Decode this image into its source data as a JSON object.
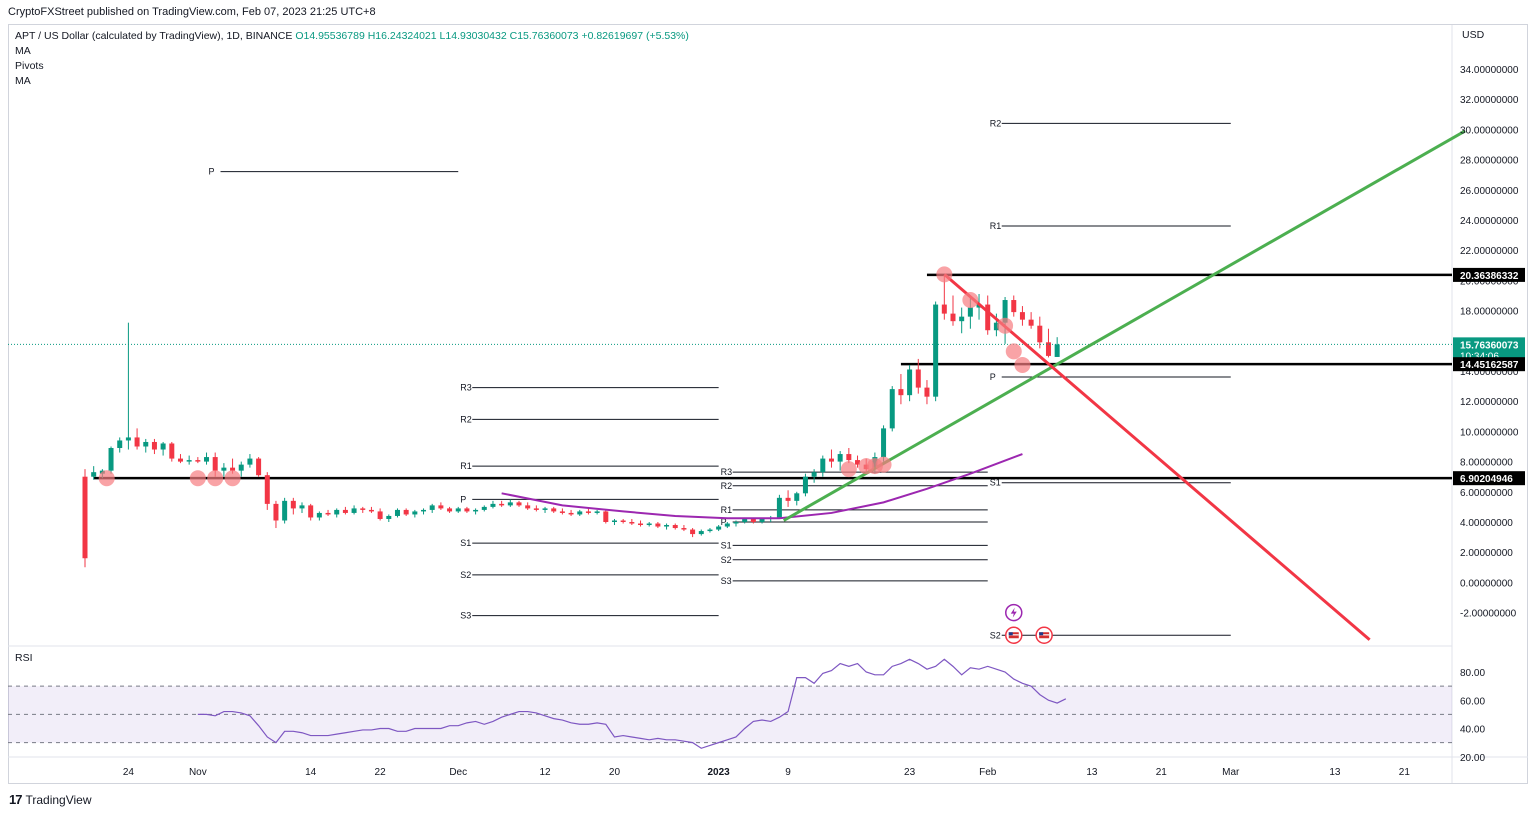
{
  "header": {
    "published": "CryptoFXStreet published on TradingView.com, Feb 07, 2023 21:25 UTC+8"
  },
  "legend": {
    "symbol": "APT / US Dollar (calculated by TradingView), 1D, BINANCE",
    "open": "O14.95536789",
    "high": "H16.24324021",
    "low": "L14.93030432",
    "close": "C15.76360073",
    "change": "+0.82619697 (+5.53%)",
    "indicators": [
      "MA",
      "Pivots",
      "MA"
    ]
  },
  "currency": "USD",
  "rsi_label": "RSI",
  "footer": {
    "logo": "17",
    "brand": "TradingView"
  },
  "colors": {
    "up": "#089981",
    "down": "#f23645",
    "green_trend": "#4caf50",
    "red_trend": "#f23645",
    "ma": "#9c27b0",
    "rsi": "#7e57c2",
    "marker": "#f77c80",
    "pivot": "#131722"
  },
  "chart_data": {
    "type": "candlestick",
    "y_axis": {
      "ylim": [
        -3.5,
        35.5
      ],
      "ticks": [
        "34.00000000",
        "32.00000000",
        "30.00000000",
        "28.00000000",
        "26.00000000",
        "24.00000000",
        "22.00000000",
        "20.00000000",
        "18.00000000",
        "16.00000000",
        "14.00000000",
        "12.00000000",
        "10.00000000",
        "8.00000000",
        "6.00000000",
        "4.00000000",
        "2.00000000",
        "0.00000000",
        "-2.00000000"
      ]
    },
    "price_badges": [
      {
        "value": 20.36386332,
        "label": "20.36386332"
      },
      {
        "value": 15.76360073,
        "label": "15.76360073",
        "sub": "10:34:06",
        "current": true
      },
      {
        "value": 14.45162587,
        "label": "14.45162587"
      },
      {
        "value": 6.90204946,
        "label": "6.90204946"
      }
    ],
    "x_axis": {
      "ticks": [
        {
          "label": "24",
          "day": 5
        },
        {
          "label": "Nov",
          "day": 13
        },
        {
          "label": "14",
          "day": 26
        },
        {
          "label": "22",
          "day": 34
        },
        {
          "label": "Dec",
          "day": 43
        },
        {
          "label": "12",
          "day": 53
        },
        {
          "label": "20",
          "day": 61
        },
        {
          "label": "2023",
          "day": 73,
          "bold": true
        },
        {
          "label": "9",
          "day": 81
        },
        {
          "label": "23",
          "day": 95
        },
        {
          "label": "Feb",
          "day": 104
        },
        {
          "label": "13",
          "day": 116
        },
        {
          "label": "21",
          "day": 124
        },
        {
          "label": "Mar",
          "day": 132
        },
        {
          "label": "13",
          "day": 144
        },
        {
          "label": "21",
          "day": 152
        }
      ]
    },
    "candles": [
      [
        7.0,
        7.5,
        1.0,
        1.6
      ],
      [
        7.0,
        7.7,
        6.8,
        7.3
      ],
      [
        7.2,
        7.5,
        6.9,
        7.4
      ],
      [
        7.4,
        9.0,
        7.2,
        8.9
      ],
      [
        8.9,
        9.6,
        8.6,
        9.4
      ],
      [
        9.4,
        17.2,
        8.8,
        9.6
      ],
      [
        9.6,
        10.2,
        8.8,
        9.0
      ],
      [
        9.0,
        9.5,
        8.6,
        9.3
      ],
      [
        9.3,
        9.5,
        8.5,
        8.8
      ],
      [
        8.8,
        9.3,
        8.4,
        9.2
      ],
      [
        9.2,
        9.3,
        8.0,
        8.2
      ],
      [
        8.2,
        8.5,
        7.9,
        8.0
      ],
      [
        8.0,
        8.4,
        7.8,
        8.1
      ],
      [
        8.1,
        8.3,
        7.9,
        8.0
      ],
      [
        8.0,
        8.6,
        7.8,
        8.3
      ],
      [
        8.3,
        8.6,
        7.0,
        7.4
      ],
      [
        7.4,
        7.9,
        7.0,
        7.6
      ],
      [
        7.6,
        8.2,
        7.2,
        7.4
      ],
      [
        7.4,
        8.0,
        7.0,
        7.8
      ],
      [
        7.8,
        8.5,
        7.6,
        8.2
      ],
      [
        8.2,
        8.3,
        7.0,
        7.1
      ],
      [
        7.1,
        7.3,
        4.8,
        5.2
      ],
      [
        5.2,
        5.4,
        3.6,
        4.1
      ],
      [
        4.1,
        5.6,
        3.9,
        5.4
      ],
      [
        5.4,
        5.6,
        4.5,
        4.9
      ],
      [
        4.9,
        5.3,
        4.6,
        5.1
      ],
      [
        5.1,
        5.2,
        4.1,
        4.3
      ],
      [
        4.3,
        4.7,
        4.1,
        4.6
      ],
      [
        4.6,
        4.8,
        4.4,
        4.5
      ],
      [
        4.5,
        4.9,
        4.3,
        4.8
      ],
      [
        4.8,
        5.0,
        4.5,
        4.6
      ],
      [
        4.6,
        5.1,
        4.5,
        4.9
      ],
      [
        4.9,
        5.0,
        4.6,
        4.8
      ],
      [
        4.8,
        5.0,
        4.6,
        4.7
      ],
      [
        4.7,
        4.9,
        4.1,
        4.2
      ],
      [
        4.2,
        4.5,
        4.0,
        4.4
      ],
      [
        4.4,
        4.9,
        4.3,
        4.8
      ],
      [
        4.8,
        4.9,
        4.4,
        4.5
      ],
      [
        4.5,
        4.8,
        4.3,
        4.7
      ],
      [
        4.7,
        4.9,
        4.5,
        4.8
      ],
      [
        4.8,
        5.2,
        4.6,
        5.1
      ],
      [
        5.1,
        5.3,
        4.8,
        4.9
      ],
      [
        4.9,
        5.0,
        4.6,
        4.7
      ],
      [
        4.7,
        5.0,
        4.6,
        4.9
      ],
      [
        4.9,
        5.0,
        4.6,
        4.7
      ],
      [
        4.7,
        4.9,
        4.5,
        4.8
      ],
      [
        4.8,
        5.1,
        4.7,
        5.0
      ],
      [
        5.0,
        5.4,
        4.9,
        5.2
      ],
      [
        5.2,
        5.4,
        5.0,
        5.1
      ],
      [
        5.1,
        5.5,
        5.0,
        5.3
      ],
      [
        5.3,
        5.4,
        5.0,
        5.1
      ],
      [
        5.1,
        5.3,
        4.8,
        4.9
      ],
      [
        4.9,
        5.1,
        4.7,
        4.8
      ],
      [
        4.8,
        5.0,
        4.6,
        4.9
      ],
      [
        4.9,
        5.0,
        4.6,
        4.7
      ],
      [
        4.7,
        4.9,
        4.5,
        4.6
      ],
      [
        4.6,
        4.8,
        4.4,
        4.5
      ],
      [
        4.5,
        4.8,
        4.4,
        4.7
      ],
      [
        4.7,
        4.9,
        4.5,
        4.6
      ],
      [
        4.6,
        4.8,
        4.5,
        4.7
      ],
      [
        4.7,
        4.8,
        3.9,
        4.0
      ],
      [
        4.0,
        4.2,
        3.8,
        4.1
      ],
      [
        4.1,
        4.2,
        3.9,
        4.0
      ],
      [
        4.0,
        4.2,
        3.8,
        3.9
      ],
      [
        3.9,
        4.1,
        3.7,
        3.8
      ],
      [
        3.8,
        4.0,
        3.7,
        3.9
      ],
      [
        3.9,
        4.0,
        3.6,
        3.7
      ],
      [
        3.7,
        3.9,
        3.5,
        3.8
      ],
      [
        3.8,
        3.9,
        3.5,
        3.6
      ],
      [
        3.6,
        3.8,
        3.4,
        3.5
      ],
      [
        3.5,
        3.6,
        3.0,
        3.2
      ],
      [
        3.2,
        3.5,
        3.1,
        3.4
      ],
      [
        3.4,
        3.6,
        3.3,
        3.5
      ],
      [
        3.5,
        3.8,
        3.4,
        3.7
      ],
      [
        3.7,
        4.0,
        3.6,
        3.9
      ],
      [
        3.9,
        4.1,
        3.7,
        4.0
      ],
      [
        4.0,
        4.3,
        3.9,
        4.2
      ],
      [
        4.2,
        4.3,
        3.9,
        4.0
      ],
      [
        4.0,
        4.3,
        3.9,
        4.2
      ],
      [
        4.2,
        4.4,
        4.0,
        4.3
      ],
      [
        4.3,
        5.8,
        4.2,
        5.6
      ],
      [
        5.6,
        6.1,
        5.0,
        5.4
      ],
      [
        5.4,
        6.0,
        5.1,
        5.9
      ],
      [
        5.9,
        7.2,
        5.7,
        7.0
      ],
      [
        7.0,
        7.5,
        6.6,
        7.3
      ],
      [
        7.3,
        8.4,
        7.0,
        8.2
      ],
      [
        8.2,
        8.8,
        7.6,
        8.0
      ],
      [
        8.0,
        8.7,
        7.4,
        8.5
      ],
      [
        8.5,
        8.9,
        7.9,
        8.1
      ],
      [
        8.1,
        8.4,
        7.6,
        7.8
      ],
      [
        7.8,
        8.2,
        7.3,
        7.5
      ],
      [
        7.5,
        8.6,
        7.2,
        8.3
      ],
      [
        8.3,
        10.4,
        8.0,
        10.2
      ],
      [
        10.2,
        13.0,
        10.0,
        12.8
      ],
      [
        12.8,
        13.8,
        11.8,
        12.4
      ],
      [
        12.4,
        14.4,
        12.0,
        14.1
      ],
      [
        14.1,
        14.8,
        12.5,
        12.9
      ],
      [
        12.9,
        13.4,
        11.8,
        12.3
      ],
      [
        12.3,
        18.6,
        12.0,
        18.4
      ],
      [
        18.4,
        20.3,
        17.4,
        17.8
      ],
      [
        17.8,
        19.0,
        17.0,
        17.3
      ],
      [
        17.3,
        18.2,
        16.5,
        17.6
      ],
      [
        17.6,
        19.0,
        16.8,
        18.2
      ],
      [
        18.2,
        19.1,
        17.4,
        18.4
      ],
      [
        18.4,
        19.0,
        16.4,
        16.7
      ],
      [
        16.7,
        17.8,
        16.3,
        17.2
      ],
      [
        17.2,
        18.9,
        15.8,
        18.7
      ],
      [
        18.7,
        19.0,
        17.6,
        17.9
      ],
      [
        17.9,
        18.3,
        17.0,
        17.4
      ],
      [
        17.4,
        17.9,
        16.8,
        17.0
      ],
      [
        17.0,
        17.6,
        15.5,
        15.9
      ],
      [
        15.9,
        16.8,
        14.9,
        15.0
      ],
      [
        14.93,
        16.24,
        14.93,
        15.76
      ]
    ],
    "series": [
      {
        "name": "MA",
        "type": "line",
        "color": "#9c27b0",
        "points": [
          [
            48,
            5.9
          ],
          [
            55,
            5.1
          ],
          [
            62,
            4.7
          ],
          [
            68,
            4.4
          ],
          [
            74,
            4.25
          ],
          [
            80,
            4.25
          ],
          [
            86,
            4.6
          ],
          [
            92,
            5.3
          ],
          [
            97,
            6.2
          ],
          [
            102,
            7.2
          ],
          [
            108,
            8.5
          ]
        ]
      }
    ],
    "horizontal_levels": [
      {
        "value": 20.36386332,
        "from_day": 97
      },
      {
        "value": 14.45162587,
        "from_day": 94
      },
      {
        "value": 6.90204946,
        "from_day": 1
      }
    ],
    "trendlines": [
      {
        "name": "support",
        "color": "#4caf50",
        "from": [
          80.5,
          4.1
        ],
        "to": [
          159,
          29.9
        ]
      },
      {
        "name": "resistance",
        "color": "#f23645",
        "from": [
          99,
          20.4
        ],
        "to": [
          148,
          -3.8
        ]
      }
    ],
    "touch_markers": [
      [
        2.5,
        6.9
      ],
      [
        13,
        6.9
      ],
      [
        15,
        6.9
      ],
      [
        17,
        6.9
      ],
      [
        92,
        7.8
      ],
      [
        91,
        7.7
      ],
      [
        90,
        7.7
      ],
      [
        88,
        7.5
      ],
      [
        99,
        20.4
      ],
      [
        102,
        18.7
      ],
      [
        106,
        17.0
      ],
      [
        107,
        15.3
      ],
      [
        108,
        14.4
      ]
    ],
    "pivots": [
      {
        "x_from": 14,
        "x_to": 43,
        "levels": [
          {
            "label": "P",
            "value": 27.2
          }
        ]
      },
      {
        "x_from": 43,
        "x_to": 73,
        "levels": [
          {
            "label": "R3",
            "value": 12.9
          },
          {
            "label": "R2",
            "value": 10.8
          },
          {
            "label": "R1",
            "value": 7.7
          },
          {
            "label": "P",
            "value": 5.5
          },
          {
            "label": "S1",
            "value": 2.6
          },
          {
            "label": "S2",
            "value": 0.5
          },
          {
            "label": "S3",
            "value": -2.2
          }
        ]
      },
      {
        "x_from": 73,
        "x_to": 104,
        "levels": [
          {
            "label": "R3",
            "value": 7.3
          },
          {
            "label": "R2",
            "value": 6.4
          },
          {
            "label": "R1",
            "value": 4.8
          },
          {
            "label": "P",
            "value": 4.0
          },
          {
            "label": "S1",
            "value": 2.45
          },
          {
            "label": "S2",
            "value": 1.5
          },
          {
            "label": "S3",
            "value": 0.1
          }
        ]
      },
      {
        "x_from": 104,
        "x_to": 132,
        "levels": [
          {
            "label": "R2",
            "value": 30.4
          },
          {
            "label": "R1",
            "value": 23.6
          },
          {
            "label": "P",
            "value": 13.6
          },
          {
            "label": "S1",
            "value": 6.6
          },
          {
            "label": "S2",
            "value": -3.5
          }
        ]
      }
    ],
    "events": [
      {
        "icon": "lightning-icon",
        "day": 107,
        "value": -2.0
      },
      {
        "icon": "us-flag-icon",
        "day": 107,
        "value": -3.5
      },
      {
        "icon": "us-flag-icon",
        "day": 110.5,
        "value": -3.5
      }
    ],
    "rsi": {
      "ylim": [
        20,
        86
      ],
      "ticks": [
        "80.00",
        "60.00",
        "40.00",
        "20.00"
      ],
      "band": [
        30,
        70
      ],
      "mid": 50,
      "values": [
        [
          13,
          50
        ],
        [
          14,
          50
        ],
        [
          15,
          49
        ],
        [
          16,
          52
        ],
        [
          17,
          52
        ],
        [
          18,
          51
        ],
        [
          19,
          49
        ],
        [
          20,
          42
        ],
        [
          21,
          34
        ],
        [
          22,
          30
        ],
        [
          23,
          38
        ],
        [
          24,
          38
        ],
        [
          25,
          37
        ],
        [
          26,
          35
        ],
        [
          27,
          35
        ],
        [
          28,
          35
        ],
        [
          29,
          36
        ],
        [
          30,
          37
        ],
        [
          31,
          38
        ],
        [
          32,
          39
        ],
        [
          33,
          39
        ],
        [
          34,
          40
        ],
        [
          35,
          40
        ],
        [
          36,
          38
        ],
        [
          37,
          38
        ],
        [
          38,
          40
        ],
        [
          39,
          40
        ],
        [
          40,
          40
        ],
        [
          41,
          40
        ],
        [
          42,
          42
        ],
        [
          43,
          42
        ],
        [
          44,
          44
        ],
        [
          45,
          45
        ],
        [
          46,
          43
        ],
        [
          47,
          45
        ],
        [
          48,
          48
        ],
        [
          49,
          50
        ],
        [
          50,
          52
        ],
        [
          51,
          52
        ],
        [
          52,
          51
        ],
        [
          53,
          49
        ],
        [
          54,
          47
        ],
        [
          55,
          46
        ],
        [
          56,
          44
        ],
        [
          57,
          43
        ],
        [
          58,
          43
        ],
        [
          59,
          44
        ],
        [
          60,
          43
        ],
        [
          61,
          34
        ],
        [
          62,
          35
        ],
        [
          63,
          34
        ],
        [
          64,
          33
        ],
        [
          65,
          32
        ],
        [
          66,
          33
        ],
        [
          67,
          32
        ],
        [
          68,
          32
        ],
        [
          69,
          31
        ],
        [
          70,
          30
        ],
        [
          71,
          26
        ],
        [
          72,
          28
        ],
        [
          73,
          30
        ],
        [
          74,
          32
        ],
        [
          75,
          34
        ],
        [
          76,
          40
        ],
        [
          77,
          45
        ],
        [
          78,
          46
        ],
        [
          79,
          45
        ],
        [
          80,
          48
        ],
        [
          81,
          52
        ],
        [
          82,
          76
        ],
        [
          83,
          76
        ],
        [
          84,
          72
        ],
        [
          85,
          79
        ],
        [
          86,
          81
        ],
        [
          87,
          86
        ],
        [
          88,
          84
        ],
        [
          89,
          86
        ],
        [
          90,
          80
        ],
        [
          91,
          78
        ],
        [
          92,
          78
        ],
        [
          93,
          84
        ],
        [
          94,
          86
        ],
        [
          95,
          89
        ],
        [
          96,
          86
        ],
        [
          97,
          82
        ],
        [
          98,
          84
        ],
        [
          99,
          89
        ],
        [
          100,
          84
        ],
        [
          101,
          78
        ],
        [
          102,
          83
        ],
        [
          103,
          82
        ],
        [
          104,
          84
        ],
        [
          105,
          82
        ],
        [
          106,
          80
        ],
        [
          107,
          75
        ],
        [
          108,
          72
        ],
        [
          109,
          70
        ],
        [
          110,
          64
        ],
        [
          111,
          60
        ],
        [
          112,
          58
        ],
        [
          113,
          61
        ]
      ]
    }
  }
}
